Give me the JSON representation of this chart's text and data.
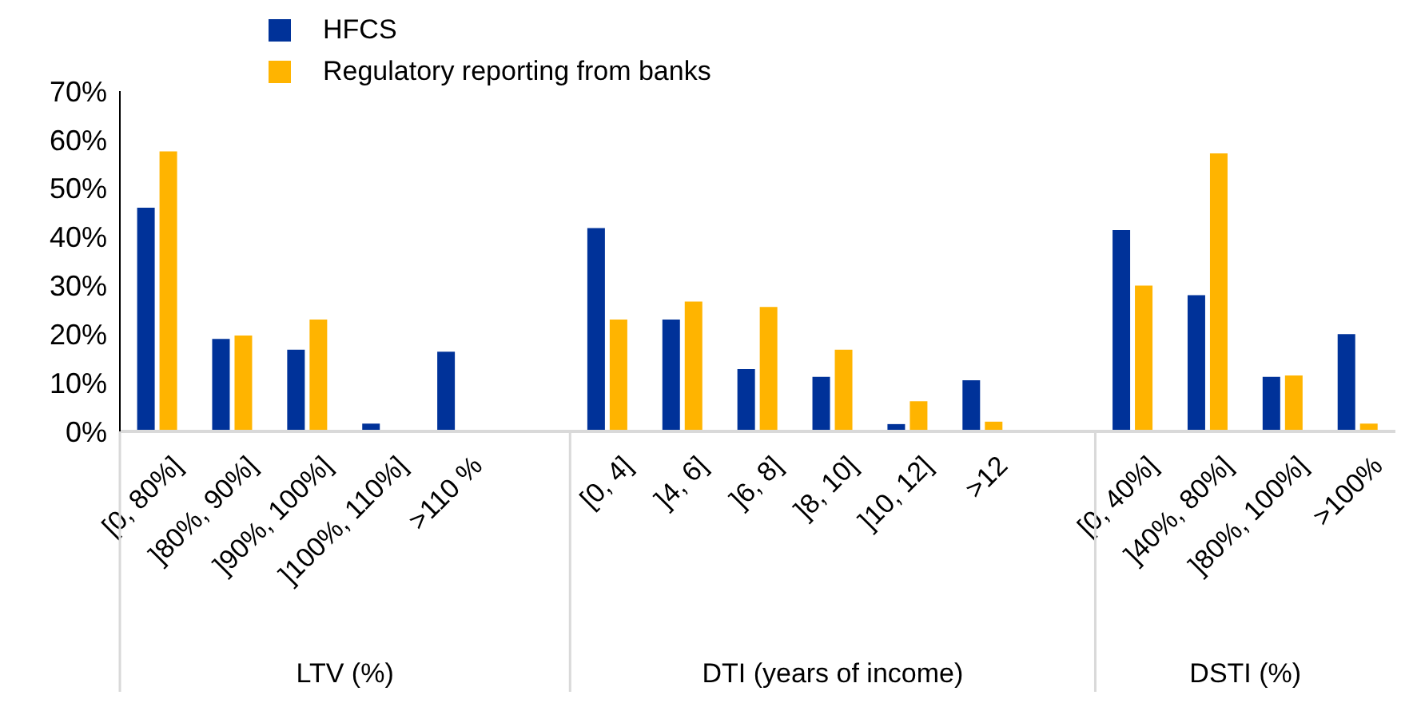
{
  "chart_data": {
    "type": "bar",
    "categories": [
      "[0, 80%]",
      "]80%, 90%]",
      "]90%, 100%]",
      "]100%, 110%]",
      ">110 %",
      null,
      "[0, 4]",
      "]4, 6]",
      "]6, 8]",
      "]8, 10]",
      "]10, 12]",
      ">12",
      null,
      "[0, 40%]",
      "]40%, 80%]",
      "]80%, 100%]",
      ">100%"
    ],
    "series": [
      {
        "name": "HFCS",
        "color": "#003299",
        "values": [
          46,
          19,
          16.8,
          1.6,
          16.4,
          null,
          41.8,
          23,
          12.8,
          11.2,
          1.5,
          10.5,
          null,
          41.4,
          28,
          11.2,
          20
        ]
      },
      {
        "name": "Regulatory reporting from banks",
        "color": "#ffb400",
        "values": [
          57.6,
          19.7,
          23,
          0,
          null,
          null,
          23,
          26.7,
          25.6,
          16.8,
          6.2,
          2,
          null,
          30,
          57.2,
          11.5,
          1.6
        ]
      }
    ],
    "ylim": [
      0,
      70
    ],
    "yticks": [
      {
        "value": 0,
        "label": "0%"
      },
      {
        "value": 10,
        "label": "10%"
      },
      {
        "value": 20,
        "label": "20%"
      },
      {
        "value": 30,
        "label": "30%"
      },
      {
        "value": 40,
        "label": "40%"
      },
      {
        "value": 50,
        "label": "50%"
      },
      {
        "value": 60,
        "label": "60%"
      },
      {
        "value": 70,
        "label": "70%"
      }
    ],
    "annotations": [
      "LTV (%)",
      "DTI (years of income)",
      "DSTI (%)"
    ],
    "legend": "top",
    "grid": false
  }
}
